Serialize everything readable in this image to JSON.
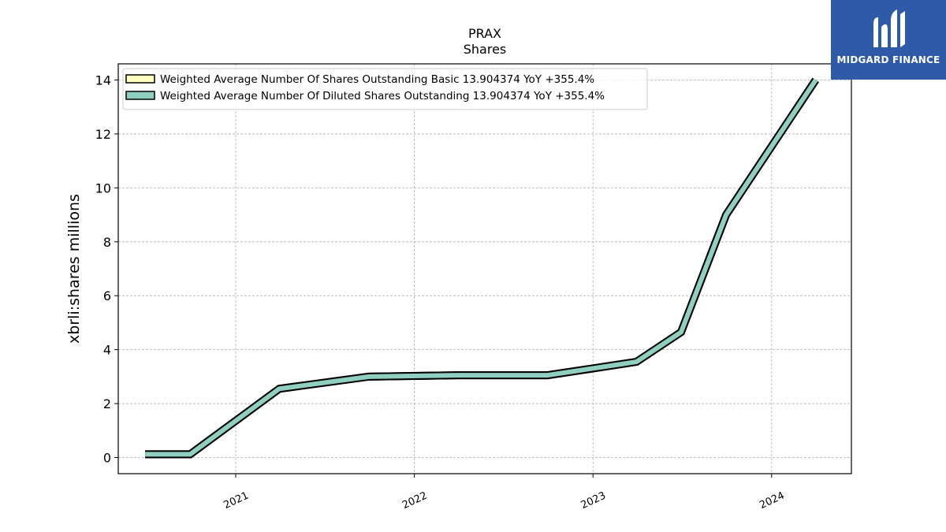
{
  "chart_data": {
    "type": "line",
    "title": "PRAX",
    "subtitle": "Shares",
    "ylabel": "xbrli:shares millions",
    "xlabel": "",
    "ylim": [
      -0.6,
      14.6
    ],
    "yticks": [
      0,
      2,
      4,
      6,
      8,
      10,
      12,
      14
    ],
    "xlim": [
      "2020-05-06",
      "2024-06-12"
    ],
    "xticks": [
      {
        "date": "2021-01-01",
        "label": "2021"
      },
      {
        "date": "2022-01-01",
        "label": "2022"
      },
      {
        "date": "2023-01-01",
        "label": "2023"
      },
      {
        "date": "2024-01-01",
        "label": "2024"
      }
    ],
    "grid": true,
    "legend_position": "top-left",
    "x": [
      "2020-06-30",
      "2020-09-30",
      "2021-03-31",
      "2021-09-30",
      "2022-03-31",
      "2022-09-30",
      "2023-03-31",
      "2023-06-30",
      "2023-09-30",
      "2024-03-31"
    ],
    "series": [
      {
        "name": "Weighted Average Number Of Shares Outstanding Basic",
        "legend_label": "Weighted Average Number Of Shares Outstanding Basic  13.904374 YoY +355.4%",
        "color": "#ffffc0",
        "values": [
          0.12,
          0.12,
          2.55,
          3.0,
          3.05,
          3.05,
          3.55,
          4.65,
          9.0,
          14.0
        ]
      },
      {
        "name": "Weighted Average Number Of Diluted Shares Outstanding",
        "legend_label": "Weighted Average Number Of Diluted Shares Outstanding  13.904374 YoY +355.4%",
        "color": "#8ecfc0",
        "values": [
          0.12,
          0.12,
          2.55,
          3.0,
          3.05,
          3.05,
          3.55,
          4.65,
          9.0,
          14.0
        ]
      }
    ]
  },
  "logo": {
    "text": "MIDGARD FINANCE",
    "color": "#2f5aa8"
  }
}
